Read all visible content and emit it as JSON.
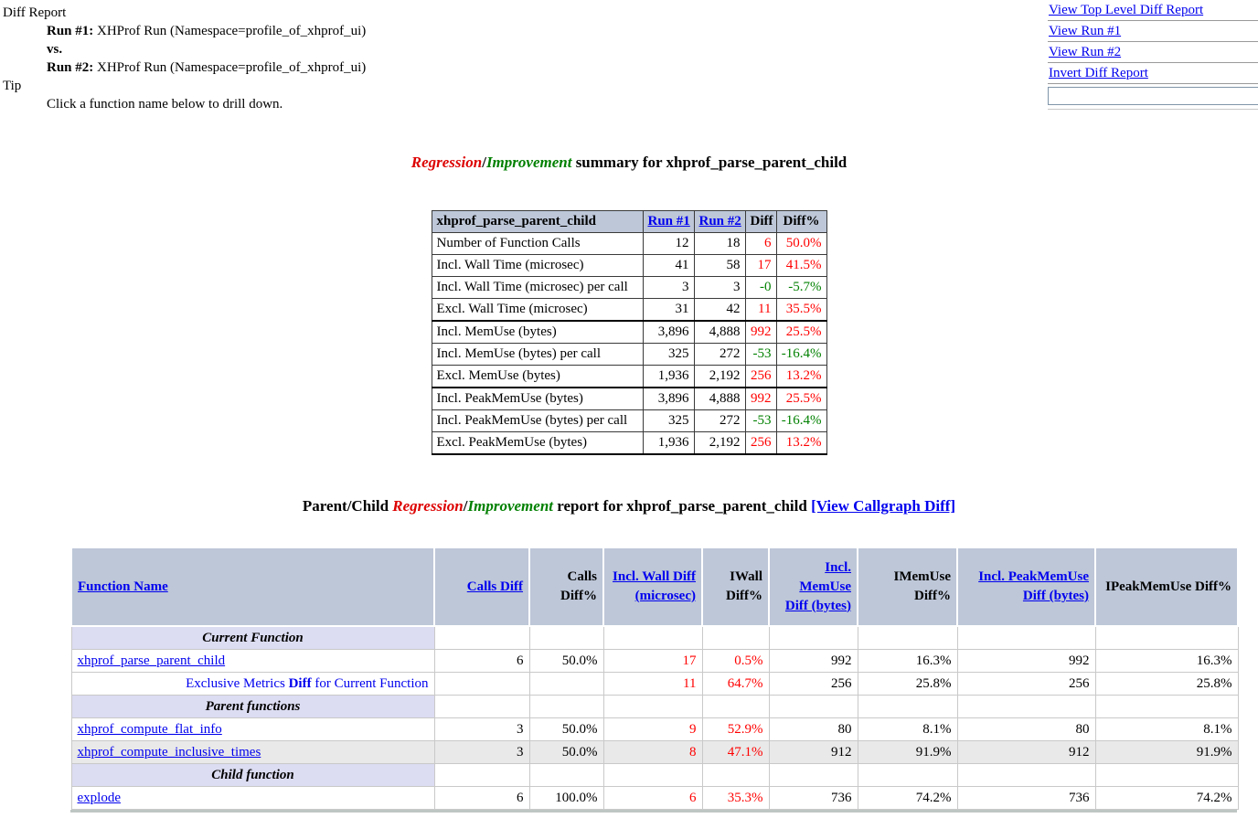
{
  "report_header": {
    "title": "Diff Report",
    "run1_label": "Run #1:",
    "run1_value": " XHProf Run (Namespace=profile_of_xhprof_ui)",
    "vs_label": "vs.",
    "run2_label": "Run #2:",
    "run2_value": " XHProf Run (Namespace=profile_of_xhprof_ui)",
    "tip_label": "Tip",
    "tip_text": "Click a function name below to drill down."
  },
  "nav": {
    "links": [
      "View Top Level Diff Report",
      "View Run #1",
      "View Run #2",
      "Invert Diff Report"
    ],
    "search_value": ""
  },
  "summary": {
    "title": {
      "regression": "Regression",
      "slash": "/",
      "improvement": "Improvement",
      "rest": " summary for xhprof_parse_parent_child"
    },
    "table": {
      "header": {
        "name": "xhprof_parse_parent_child",
        "run1": "Run #1",
        "run2": "Run #2",
        "diff": "Diff",
        "diff_pct": "Diff%"
      },
      "rows": [
        {
          "metric": "Number of Function Calls",
          "run1": "12",
          "run2": "18",
          "diff": "6",
          "diff_pct": "50.0%",
          "trend": "red",
          "group_end": false
        },
        {
          "metric": "Incl. Wall Time (microsec)",
          "run1": "41",
          "run2": "58",
          "diff": "17",
          "diff_pct": "41.5%",
          "trend": "red",
          "group_end": false
        },
        {
          "metric": "Incl. Wall Time (microsec) per call",
          "run1": "3",
          "run2": "3",
          "diff": "-0",
          "diff_pct": "-5.7%",
          "trend": "green",
          "group_end": false
        },
        {
          "metric": "Excl. Wall Time (microsec)",
          "run1": "31",
          "run2": "42",
          "diff": "11",
          "diff_pct": "35.5%",
          "trend": "red",
          "group_end": true
        },
        {
          "metric": "Incl. MemUse (bytes)",
          "run1": "3,896",
          "run2": "4,888",
          "diff": "992",
          "diff_pct": "25.5%",
          "trend": "red",
          "group_end": false
        },
        {
          "metric": "Incl. MemUse (bytes) per call",
          "run1": "325",
          "run2": "272",
          "diff": "-53",
          "diff_pct": "-16.4%",
          "trend": "green",
          "group_end": false
        },
        {
          "metric": "Excl. MemUse (bytes)",
          "run1": "1,936",
          "run2": "2,192",
          "diff": "256",
          "diff_pct": "13.2%",
          "trend": "red",
          "group_end": true
        },
        {
          "metric": "Incl. PeakMemUse (bytes)",
          "run1": "3,896",
          "run2": "4,888",
          "diff": "992",
          "diff_pct": "25.5%",
          "trend": "red",
          "group_end": false
        },
        {
          "metric": "Incl. PeakMemUse (bytes) per call",
          "run1": "325",
          "run2": "272",
          "diff": "-53",
          "diff_pct": "-16.4%",
          "trend": "green",
          "group_end": false
        },
        {
          "metric": "Excl. PeakMemUse (bytes)",
          "run1": "1,936",
          "run2": "2,192",
          "diff": "256",
          "diff_pct": "13.2%",
          "trend": "red",
          "group_end": true
        }
      ]
    }
  },
  "parent_child": {
    "title": {
      "prefix": "Parent/Child ",
      "regression": "Regression",
      "slash": "/",
      "improvement": "Improvement",
      "rest": " report for xhprof_parse_parent_child ",
      "callgraph_link": "[View Callgraph Diff]"
    },
    "table": {
      "columns": [
        {
          "key": "function-name",
          "label": "Function Name",
          "is_link": true
        },
        {
          "key": "calls-diff",
          "label": "Calls Diff",
          "is_link": true
        },
        {
          "key": "calls-diff-pct",
          "label": "Calls Diff%",
          "is_link": false
        },
        {
          "key": "incl-wall-diff",
          "label": "Incl. Wall Diff (microsec)",
          "is_link": true
        },
        {
          "key": "iwall-diff-pct",
          "label": "IWall Diff%",
          "is_link": false
        },
        {
          "key": "incl-memuse-diff",
          "label": "Incl. MemUse Diff (bytes)",
          "is_link": true
        },
        {
          "key": "imemuse-diff-pct",
          "label": "IMemUse Diff%",
          "is_link": false
        },
        {
          "key": "incl-peakmemuse-diff",
          "label": "Incl. PeakMemUse Diff (bytes)",
          "is_link": true
        },
        {
          "key": "ipeakmemuse-diff-pct",
          "label": "IPeakMemUse Diff%",
          "is_link": false
        }
      ],
      "value_classes": [
        "",
        "",
        "red",
        "red",
        "",
        "",
        "",
        ""
      ],
      "rows": [
        {
          "type": "section",
          "label": "Current Function"
        },
        {
          "type": "function",
          "name": "xhprof_parse_parent_child",
          "shaded": false,
          "values": [
            "6",
            "50.0%",
            "17",
            "0.5%",
            "992",
            "16.3%",
            "992",
            "16.3%"
          ]
        },
        {
          "type": "exclusive",
          "label_pre": "Exclusive Metrics ",
          "label_bold": "Diff",
          "label_post": " for Current Function",
          "shaded": false,
          "values": [
            "",
            "",
            "11",
            "64.7%",
            "256",
            "25.8%",
            "256",
            "25.8%"
          ]
        },
        {
          "type": "section",
          "label": "Parent functions"
        },
        {
          "type": "function",
          "name": "xhprof_compute_flat_info",
          "shaded": false,
          "values": [
            "3",
            "50.0%",
            "9",
            "52.9%",
            "80",
            "8.1%",
            "80",
            "8.1%"
          ]
        },
        {
          "type": "function",
          "name": "xhprof_compute_inclusive_times",
          "shaded": true,
          "values": [
            "3",
            "50.0%",
            "8",
            "47.1%",
            "912",
            "91.9%",
            "912",
            "91.9%"
          ]
        },
        {
          "type": "section",
          "label": "Child function"
        },
        {
          "type": "function",
          "name": "explode",
          "shaded": false,
          "values": [
            "6",
            "100.0%",
            "6",
            "35.3%",
            "736",
            "74.2%",
            "736",
            "74.2%"
          ]
        }
      ]
    }
  },
  "colors": {
    "link_blue": "#0000ee",
    "regression_red": "#dd0000",
    "improvement_green": "#008000",
    "value_red": "#ff0000",
    "value_green": "#008000",
    "table_header_bg": "#bdc7d8",
    "section_row_bg": "#dcdcf2",
    "shaded_row_bg": "#e9e9e9"
  }
}
